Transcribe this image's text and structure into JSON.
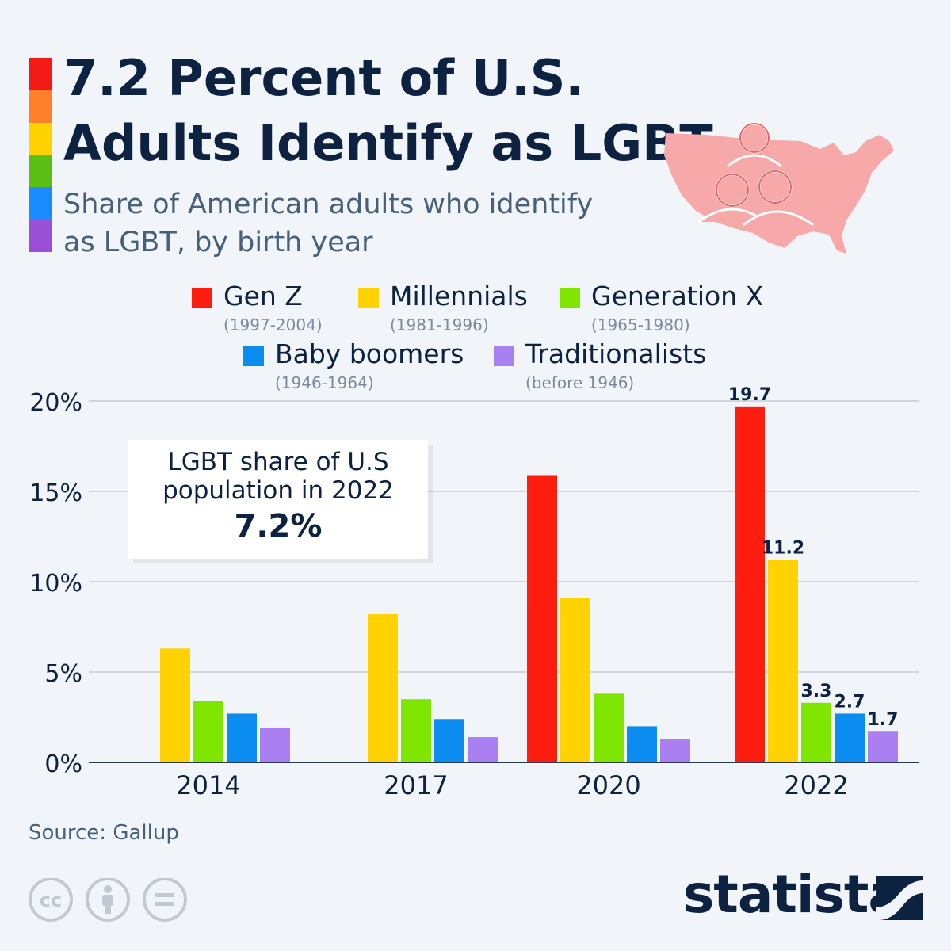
{
  "header": {
    "title": "7.2 Percent of U.S. Adults Identify as LGBT",
    "subtitle": "Share of American adults who identify as LGBT, by birth year",
    "rainbow_colors": [
      "#f41a16",
      "#ff7f2a",
      "#ffd200",
      "#5cbf14",
      "#1a8cff",
      "#9b4fd6"
    ]
  },
  "legend": [
    {
      "name": "Gen Z",
      "years": "(1997-2004)",
      "color": "#ff1d0f"
    },
    {
      "name": "Millennials",
      "years": "(1981-1996)",
      "color": "#ffd200"
    },
    {
      "name": "Generation X",
      "years": "(1965-1980)",
      "color": "#7fe600"
    },
    {
      "name": "Baby boomers",
      "years": "(1946-1964)",
      "color": "#0a8cf0"
    },
    {
      "name": "Traditionalists",
      "years": "(before 1946)",
      "color": "#a97ff2"
    }
  ],
  "callout": {
    "text": "LGBT share of U.S population in 2022",
    "value": "7.2%"
  },
  "chart_data": {
    "type": "bar",
    "categories": [
      "2014",
      "2017",
      "2020",
      "2022"
    ],
    "series": [
      {
        "name": "Gen Z",
        "color": "#ff1d0f",
        "values": [
          null,
          null,
          15.9,
          19.7
        ]
      },
      {
        "name": "Millennials",
        "color": "#ffd200",
        "values": [
          6.3,
          8.2,
          9.1,
          11.2
        ]
      },
      {
        "name": "Generation X",
        "color": "#7fe600",
        "values": [
          3.4,
          3.5,
          3.8,
          3.3
        ]
      },
      {
        "name": "Baby boomers",
        "color": "#0a8cf0",
        "values": [
          2.7,
          2.4,
          2.0,
          2.7
        ]
      },
      {
        "name": "Traditionalists",
        "color": "#a97ff2",
        "values": [
          1.9,
          1.4,
          1.3,
          1.7
        ]
      }
    ],
    "data_labels": [
      {
        "category": "2022",
        "series": "Gen Z",
        "text": "19.7"
      },
      {
        "category": "2022",
        "series": "Millennials",
        "text": "11.2"
      },
      {
        "category": "2022",
        "series": "Generation X",
        "text": "3.3"
      },
      {
        "category": "2022",
        "series": "Baby boomers",
        "text": "2.7"
      },
      {
        "category": "2022",
        "series": "Traditionalists",
        "text": "1.7"
      }
    ],
    "yticks": [
      "0%",
      "5%",
      "10%",
      "15%",
      "20%"
    ],
    "ylim": [
      0,
      20
    ],
    "grid": true
  },
  "source": "Source: Gallup",
  "branding": {
    "name": "statista"
  },
  "license_icons": [
    "cc-icon",
    "attribution-icon",
    "no-derivatives-icon"
  ]
}
